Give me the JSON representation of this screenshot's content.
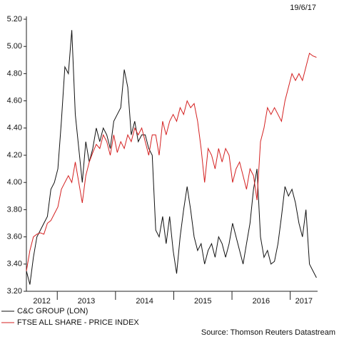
{
  "chart_data": {
    "type": "line",
    "title": "19/6/17",
    "source": "Source: Thomson Reuters Datastream",
    "xlim": [
      2012.47,
      2017.47
    ],
    "year_ticks": [
      2013,
      2014,
      2015,
      2016,
      2017
    ],
    "xticks": [
      {
        "value": 2012.735,
        "label": "2012"
      },
      {
        "value": 2013.5,
        "label": "2013"
      },
      {
        "value": 2014.5,
        "label": "2014"
      },
      {
        "value": 2015.5,
        "label": "2015"
      },
      {
        "value": 2016.5,
        "label": "2016"
      },
      {
        "value": 2017.235,
        "label": "2017"
      }
    ],
    "ylim": [
      3.2,
      5.2
    ],
    "yticks": [
      {
        "value": 3.2,
        "label": "3.20"
      },
      {
        "value": 3.4,
        "label": "3.40"
      },
      {
        "value": 3.6,
        "label": "3.60"
      },
      {
        "value": 3.8,
        "label": "3.80"
      },
      {
        "value": 4.0,
        "label": "4.00"
      },
      {
        "value": 4.2,
        "label": "4.20"
      },
      {
        "value": 4.4,
        "label": "4.40"
      },
      {
        "value": 4.6,
        "label": "4.60"
      },
      {
        "value": 4.8,
        "label": "4.80"
      },
      {
        "value": 5.0,
        "label": "5.00"
      },
      {
        "value": 5.2,
        "label": "5.20"
      }
    ],
    "x": [
      2012.47,
      2012.53,
      2012.59,
      2012.65,
      2012.71,
      2012.77,
      2012.83,
      2012.89,
      2012.95,
      2013.01,
      2013.07,
      2013.13,
      2013.19,
      2013.25,
      2013.31,
      2013.37,
      2013.43,
      2013.49,
      2013.55,
      2013.61,
      2013.67,
      2013.73,
      2013.79,
      2013.85,
      2013.91,
      2013.97,
      2014.03,
      2014.09,
      2014.15,
      2014.21,
      2014.27,
      2014.33,
      2014.39,
      2014.45,
      2014.51,
      2014.57,
      2014.63,
      2014.69,
      2014.75,
      2014.81,
      2014.87,
      2014.93,
      2014.99,
      2015.05,
      2015.11,
      2015.17,
      2015.23,
      2015.29,
      2015.35,
      2015.41,
      2015.47,
      2015.53,
      2015.59,
      2015.65,
      2015.71,
      2015.77,
      2015.83,
      2015.89,
      2015.95,
      2016.01,
      2016.07,
      2016.13,
      2016.19,
      2016.25,
      2016.31,
      2016.37,
      2016.43,
      2016.49,
      2016.55,
      2016.61,
      2016.67,
      2016.73,
      2016.79,
      2016.85,
      2016.91,
      2016.97,
      2017.03,
      2017.09,
      2017.15,
      2017.21,
      2017.27,
      2017.33,
      2017.39,
      2017.45
    ],
    "series": [
      {
        "name": "C&C GROUP (LON)",
        "color": "#111111",
        "values": [
          3.35,
          3.25,
          3.45,
          3.6,
          3.65,
          3.7,
          3.75,
          3.95,
          4.0,
          4.1,
          4.45,
          4.85,
          4.8,
          5.12,
          4.5,
          4.25,
          4.0,
          4.3,
          4.15,
          4.25,
          4.4,
          4.3,
          4.4,
          4.35,
          4.25,
          4.45,
          4.5,
          4.55,
          4.83,
          4.7,
          4.35,
          4.45,
          4.3,
          4.35,
          4.35,
          4.25,
          4.2,
          3.65,
          3.6,
          3.75,
          3.55,
          3.75,
          3.5,
          3.33,
          3.6,
          3.8,
          3.97,
          3.8,
          3.6,
          3.5,
          3.55,
          3.4,
          3.5,
          3.55,
          3.45,
          3.6,
          3.55,
          3.45,
          3.55,
          3.7,
          3.6,
          3.5,
          3.4,
          3.55,
          3.7,
          3.95,
          4.1,
          3.6,
          3.45,
          3.5,
          3.4,
          3.42,
          3.55,
          3.75,
          3.97,
          3.9,
          3.95,
          3.85,
          3.7,
          3.6,
          3.8,
          3.4,
          3.35,
          3.3
        ]
      },
      {
        "name": "FTSE ALL SHARE - PRICE INDEX",
        "color": "#d42020",
        "values": [
          3.35,
          3.5,
          3.6,
          3.62,
          3.63,
          3.62,
          3.7,
          3.72,
          3.77,
          3.82,
          3.95,
          4.0,
          4.05,
          4.0,
          4.15,
          4.0,
          3.85,
          4.05,
          4.15,
          4.22,
          4.28,
          4.25,
          4.35,
          4.3,
          4.2,
          4.35,
          4.22,
          4.3,
          4.25,
          4.35,
          4.3,
          4.4,
          4.35,
          4.4,
          4.3,
          4.2,
          4.35,
          4.35,
          4.2,
          4.45,
          4.35,
          4.45,
          4.5,
          4.45,
          4.55,
          4.5,
          4.6,
          4.55,
          4.58,
          4.45,
          4.25,
          4.0,
          4.25,
          4.2,
          4.1,
          4.25,
          4.15,
          4.25,
          4.2,
          4.0,
          4.1,
          4.15,
          4.05,
          3.95,
          4.1,
          4.05,
          3.87,
          4.3,
          4.4,
          4.55,
          4.5,
          4.55,
          4.5,
          4.45,
          4.6,
          4.7,
          4.8,
          4.75,
          4.8,
          4.75,
          4.85,
          4.95,
          4.93,
          4.92
        ]
      }
    ]
  }
}
